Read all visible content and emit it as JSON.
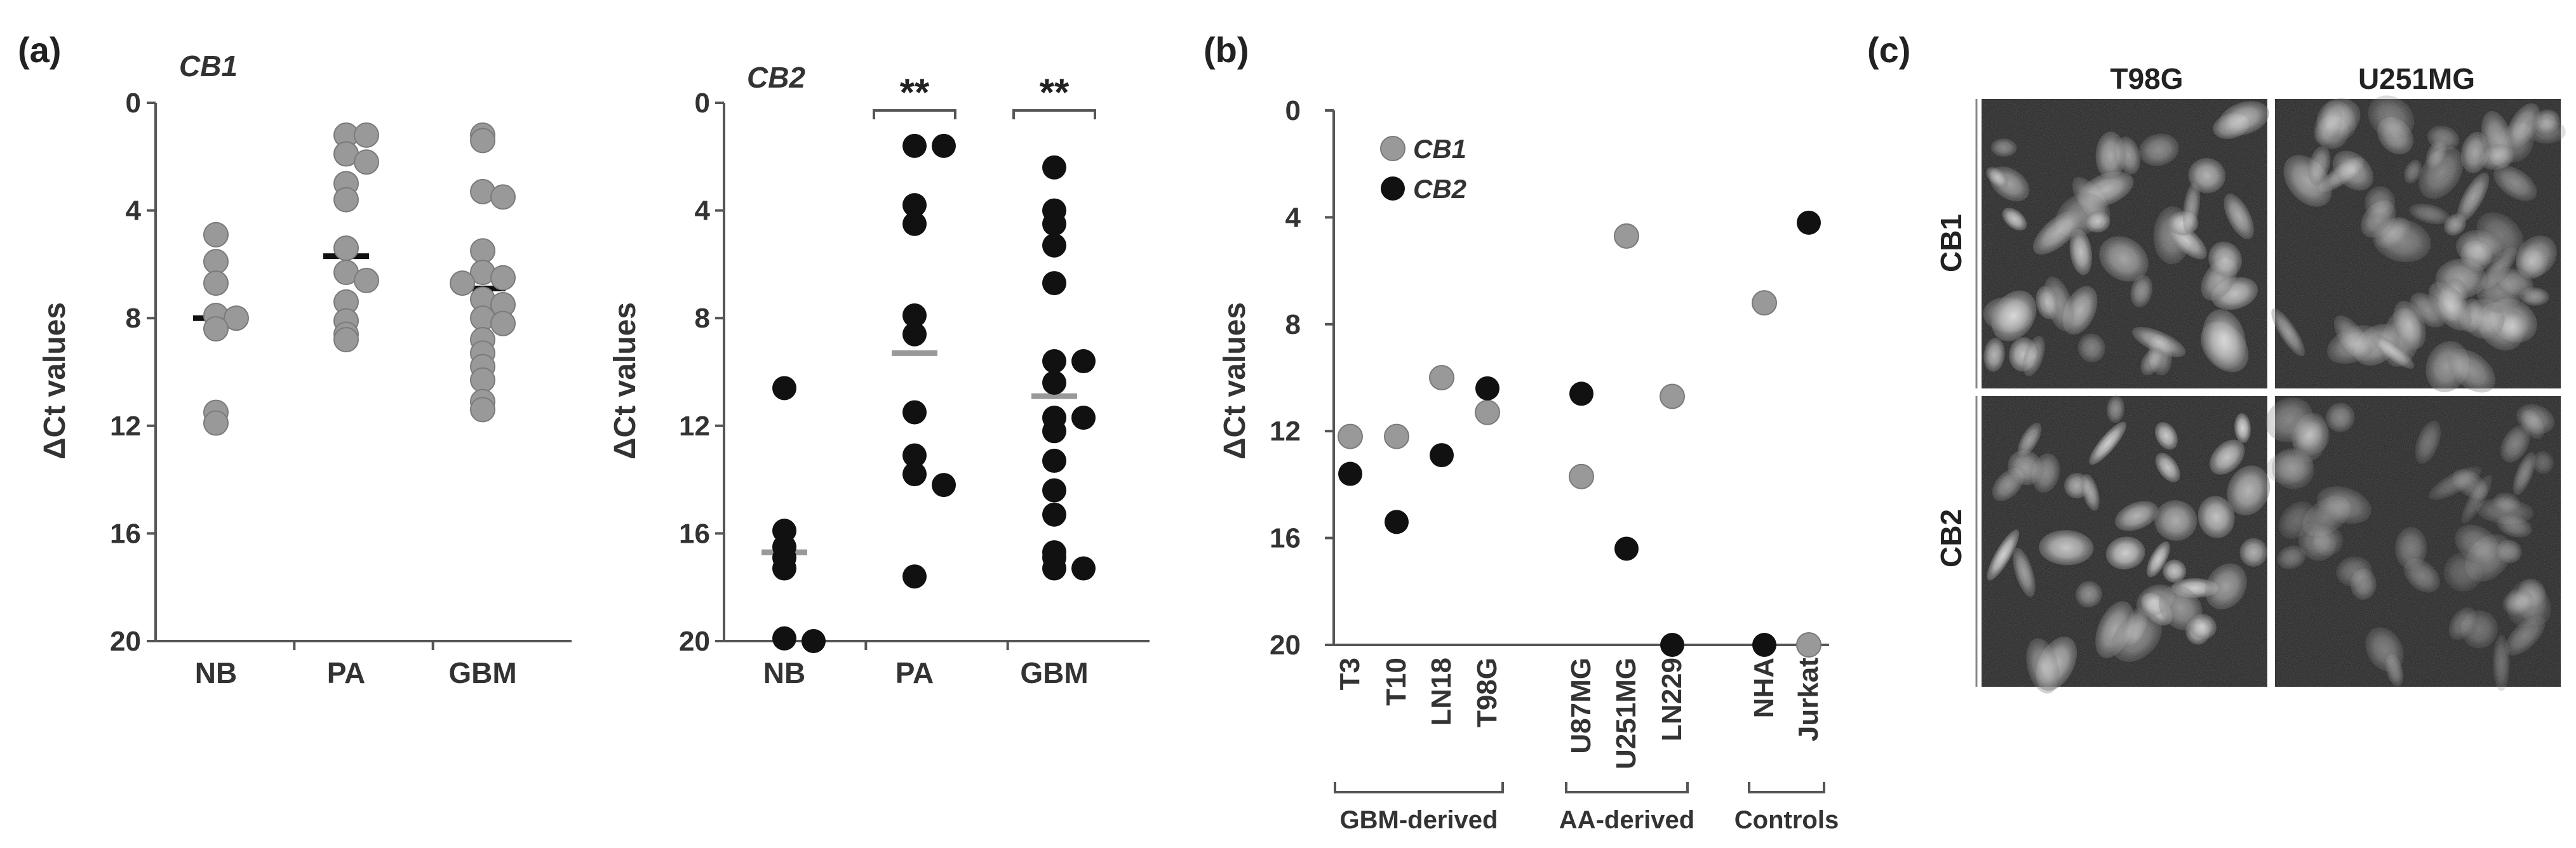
{
  "panels": {
    "a_label": "(a)",
    "b_label": "(b)",
    "c_label": "(c)"
  },
  "colors": {
    "cb1_fill": "#999999",
    "cb1_stroke": "#7a7a7a",
    "cb2_fill": "#111111",
    "mean_cb1": "#111111",
    "mean_cb2": "#999999",
    "axis": "#555555"
  },
  "chart_data": [
    {
      "id": "a1",
      "type": "scatter",
      "title": "CB1",
      "ylabel": "ΔCt values",
      "ylim": [
        20,
        0
      ],
      "yticks": [
        "0",
        "4",
        "8",
        "12",
        "16",
        "20"
      ],
      "categories": [
        "NB",
        "PA",
        "GBM"
      ],
      "series": [
        {
          "name": "CB1",
          "color": "cb1",
          "points": [
            [
              0,
              4.9
            ],
            [
              0,
              5.9
            ],
            [
              0,
              6.7
            ],
            [
              0,
              7.9
            ],
            [
              0,
              8.0
            ],
            [
              0,
              8.4
            ],
            [
              0,
              11.5
            ],
            [
              0,
              11.9
            ],
            [
              1,
              1.2
            ],
            [
              1,
              1.2
            ],
            [
              1,
              1.9
            ],
            [
              1,
              2.2
            ],
            [
              1,
              3.0
            ],
            [
              1,
              3.6
            ],
            [
              1,
              5.4
            ],
            [
              1,
              6.3
            ],
            [
              1,
              6.6
            ],
            [
              1,
              7.4
            ],
            [
              1,
              8.1
            ],
            [
              1,
              8.6
            ],
            [
              1,
              8.8
            ],
            [
              2,
              1.2
            ],
            [
              2,
              1.4
            ],
            [
              2,
              3.3
            ],
            [
              2,
              3.5
            ],
            [
              2,
              5.5
            ],
            [
              2,
              6.3
            ],
            [
              2,
              6.5
            ],
            [
              2,
              6.7
            ],
            [
              2,
              7.3
            ],
            [
              2,
              7.5
            ],
            [
              2,
              8.0
            ],
            [
              2,
              8.2
            ],
            [
              2,
              8.8
            ],
            [
              2,
              9.3
            ],
            [
              2,
              9.8
            ],
            [
              2,
              10.3
            ],
            [
              2,
              11.1
            ],
            [
              2,
              11.4
            ]
          ]
        }
      ],
      "means": [
        8.0,
        5.7,
        6.9
      ],
      "mean_color": "mean_cb1"
    },
    {
      "id": "a2",
      "type": "scatter",
      "title": "CB2",
      "ylabel": "ΔCt values",
      "ylim": [
        20,
        0
      ],
      "yticks": [
        "0",
        "4",
        "8",
        "12",
        "16",
        "20"
      ],
      "categories": [
        "NB",
        "PA",
        "GBM"
      ],
      "series": [
        {
          "name": "CB2",
          "color": "cb2",
          "points": [
            [
              0,
              10.6
            ],
            [
              0,
              15.9
            ],
            [
              0,
              16.5
            ],
            [
              0,
              16.9
            ],
            [
              0,
              17.3
            ],
            [
              0,
              19.9
            ],
            [
              0,
              20.0
            ],
            [
              1,
              1.6
            ],
            [
              1,
              1.6
            ],
            [
              1,
              3.8
            ],
            [
              1,
              4.5
            ],
            [
              1,
              7.9
            ],
            [
              1,
              8.6
            ],
            [
              1,
              11.5
            ],
            [
              1,
              13.1
            ],
            [
              1,
              13.8
            ],
            [
              1,
              14.2
            ],
            [
              1,
              17.6
            ],
            [
              2,
              2.4
            ],
            [
              2,
              4.0
            ],
            [
              2,
              4.5
            ],
            [
              2,
              5.3
            ],
            [
              2,
              6.7
            ],
            [
              2,
              9.6
            ],
            [
              2,
              9.6
            ],
            [
              2,
              10.4
            ],
            [
              2,
              11.7
            ],
            [
              2,
              11.7
            ],
            [
              2,
              12.2
            ],
            [
              2,
              13.3
            ],
            [
              2,
              14.4
            ],
            [
              2,
              15.3
            ],
            [
              2,
              16.7
            ],
            [
              2,
              16.9
            ],
            [
              2,
              17.3
            ],
            [
              2,
              17.3
            ]
          ]
        }
      ],
      "means": [
        16.7,
        9.3,
        10.9
      ],
      "mean_color": "mean_cb2",
      "annotations": [
        {
          "text": "**",
          "from": 1,
          "to": 1
        },
        {
          "text": "**",
          "from": 2,
          "to": 2
        }
      ]
    },
    {
      "id": "b",
      "type": "scatter",
      "title": "",
      "ylabel": "ΔCt values",
      "ylim": [
        20,
        0
      ],
      "yticks": [
        "0",
        "4",
        "8",
        "12",
        "16",
        "20"
      ],
      "categories": [
        "T3",
        "T10",
        "LN18",
        "T98G",
        "U87MG",
        "U251MG",
        "LN229",
        "NHA",
        "Jurkat"
      ],
      "series": [
        {
          "name": "CB1",
          "color": "cb1",
          "values": [
            12.2,
            12.2,
            10.0,
            11.3,
            13.7,
            4.7,
            10.7,
            7.2,
            20.0
          ]
        },
        {
          "name": "CB2",
          "color": "cb2",
          "values": [
            13.6,
            15.4,
            12.9,
            10.4,
            10.6,
            16.4,
            20.0,
            20.0,
            4.2
          ]
        }
      ],
      "legend": [
        "CB1",
        "CB2"
      ],
      "groups": [
        {
          "label": "GBM-derived",
          "from": 0,
          "to": 3
        },
        {
          "label": "AA-derived",
          "from": 4,
          "to": 6
        },
        {
          "label": "Controls",
          "from": 7,
          "to": 8
        }
      ]
    }
  ],
  "micrographs": {
    "columns": [
      "T98G",
      "U251MG"
    ],
    "rows": [
      "CB1",
      "CB2"
    ]
  }
}
